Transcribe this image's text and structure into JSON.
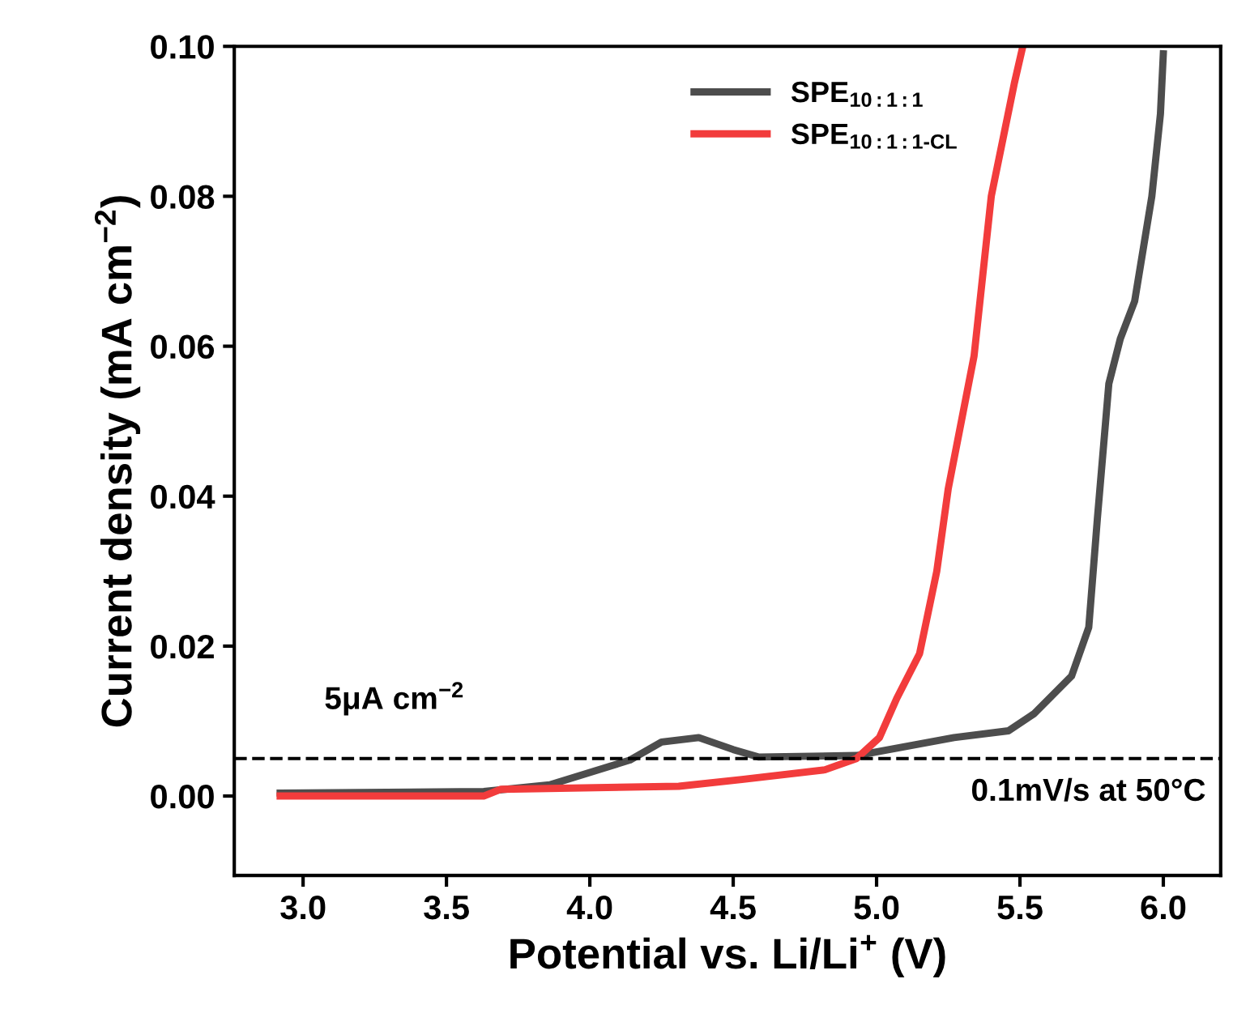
{
  "chart_data": {
    "type": "line",
    "xlabel": "Potential vs. Li/Li$^{+}$ (V)",
    "ylabel": "Current density (mA cm$^{−2}$)",
    "xlim": [
      2.76,
      6.2
    ],
    "ylim": [
      -0.0106,
      0.1
    ],
    "xticks": [
      {
        "value": 3,
        "label": "3.0"
      },
      3.5,
      {
        "value": 4,
        "label": "4.0"
      },
      4.5,
      {
        "value": 5,
        "label": "5.0"
      },
      5.5,
      {
        "value": 6,
        "label": "6.0"
      }
    ],
    "yticks": [
      {
        "value": 0,
        "label": "0.00"
      },
      0.02,
      0.04,
      0.06,
      0.08,
      {
        "value": 0.1,
        "label": "0.10"
      }
    ],
    "grid": false,
    "legend": "top",
    "line_style": "solid",
    "marker": "none",
    "series": [
      {
        "name": "SPE$_{10:1:1}$",
        "color": "#4d4d4d",
        "x": [
          2.92,
          3.63,
          3.86,
          4.14,
          4.25,
          4.38,
          4.5,
          4.59,
          4.93,
          5.27,
          5.46,
          5.55,
          5.68,
          5.74,
          5.77,
          5.81,
          5.85,
          5.9,
          5.93,
          5.96,
          5.99,
          6.0
        ],
        "values": [
          0.0004,
          0.0006,
          0.0015,
          0.0048,
          0.0072,
          0.0078,
          0.0062,
          0.0052,
          0.0054,
          0.0078,
          0.0087,
          0.011,
          0.016,
          0.0225,
          0.037,
          0.055,
          0.061,
          0.066,
          0.073,
          0.08,
          0.091,
          0.099
        ]
      },
      {
        "name": "SPE$_{10:1:1-CL}$",
        "color": "#f23c3c",
        "x": [
          2.92,
          3.63,
          3.69,
          4.31,
          4.53,
          4.82,
          4.93,
          5.01,
          5.07,
          5.15,
          5.21,
          5.25,
          5.34,
          5.4,
          5.48,
          5.51
        ],
        "values": [
          0.0,
          0.0,
          0.0009,
          0.0013,
          0.0022,
          0.0035,
          0.005,
          0.0078,
          0.013,
          0.019,
          0.03,
          0.041,
          0.0587,
          0.08,
          0.095,
          0.1
        ]
      }
    ],
    "ref_lines": [
      {
        "axis": "y",
        "value": 0.005,
        "label": "5μA cm$^{−2}$",
        "color": "#000000",
        "line_style": "dashed"
      }
    ],
    "annotations": [
      "0.1mV/s at 50°C"
    ]
  }
}
